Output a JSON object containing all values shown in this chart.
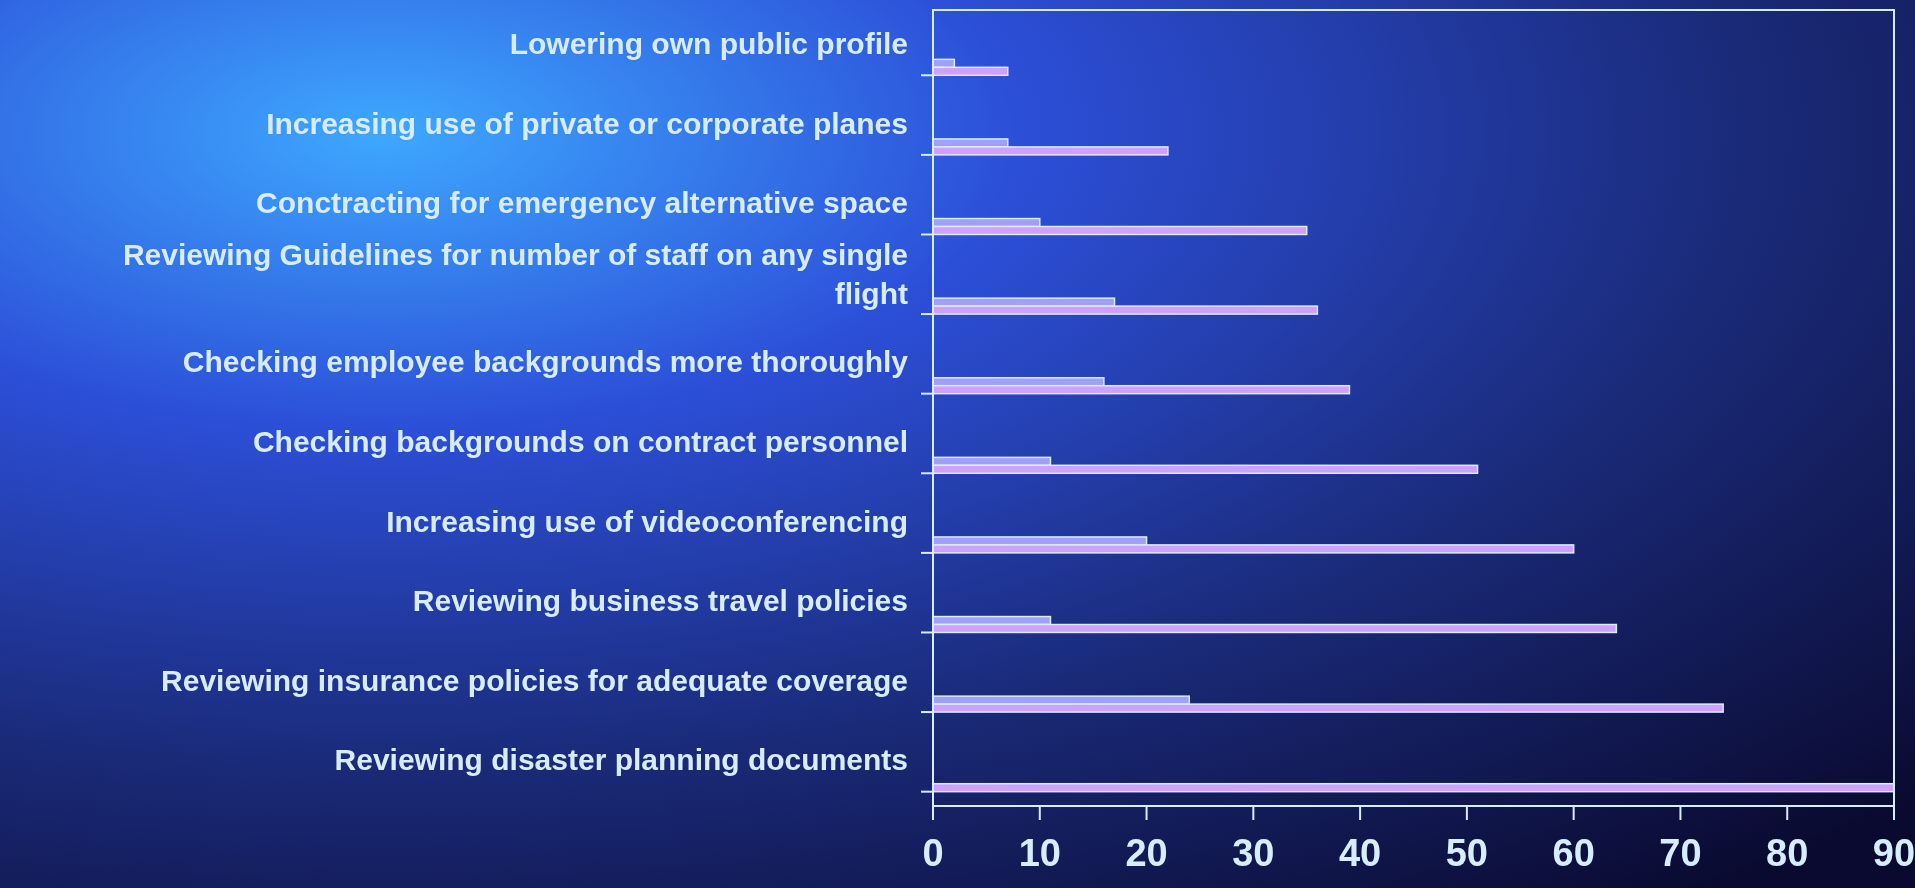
{
  "chart_data": {
    "type": "bar",
    "orientation": "horizontal",
    "categories": [
      "Lowering own public profile",
      "Increasing use of private or corporate planes",
      "Conctracting for emergency alternative space",
      "Reviewing Guidelines for number of staff on any single flight",
      "Checking employee backgrounds more thoroughly",
      "Checking backgrounds on contract personnel",
      "Increasing use of videoconferencing",
      "Reviewing business travel policies",
      "Reviewing insurance policies for adequate coverage",
      "Reviewing disaster planning documents"
    ],
    "series": [
      {
        "color": "#a0a0f8",
        "values": [
          2,
          7,
          10,
          17,
          16,
          11,
          20,
          11,
          24,
          null
        ]
      },
      {
        "color": "#d0a0ff",
        "values": [
          7,
          22,
          35,
          36,
          39,
          51,
          60,
          64,
          74,
          90
        ]
      }
    ],
    "xlim": [
      0,
      90
    ],
    "xticks": [
      0,
      10,
      20,
      30,
      40,
      50,
      60,
      70,
      80,
      90
    ],
    "grid": false
  }
}
